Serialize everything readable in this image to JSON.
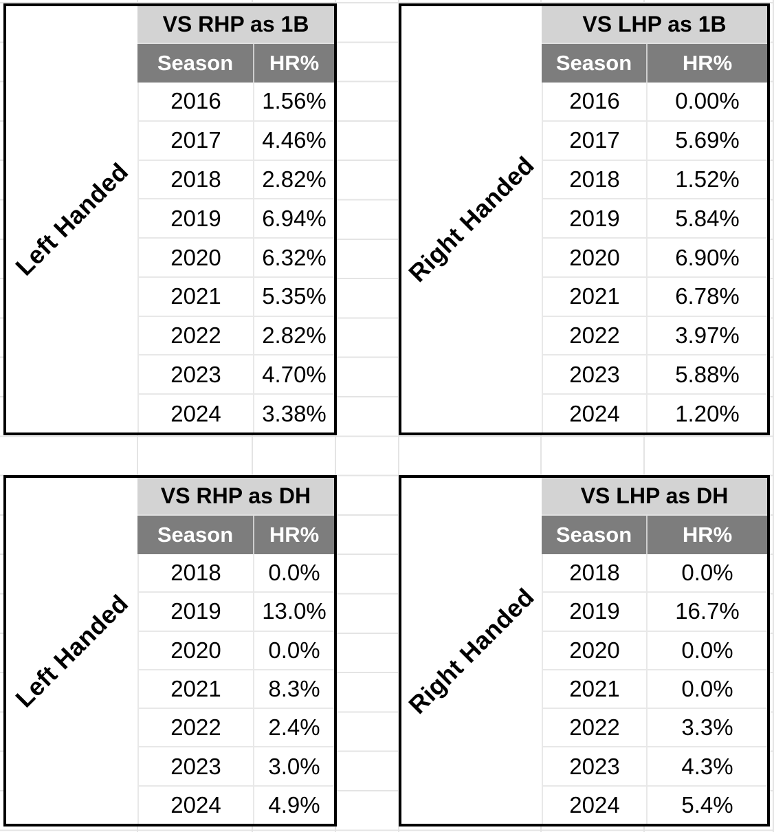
{
  "colors": {
    "title_bg": "#d3d3d3",
    "header_bg": "#7d7d7d",
    "header_text": "#ffffff",
    "page_gridline": "#e4e4e4",
    "table_gridline": "#e8e8e8",
    "header_divider": "#cfcfcf",
    "box_border": "#000000",
    "text_color": "#000000"
  },
  "tables": [
    {
      "id": "vs-rhp-as-1b",
      "side_label": "Left Handed",
      "title": "VS RHP as 1B",
      "columns": [
        "Season",
        "HR%"
      ],
      "rows": [
        [
          "2016",
          "1.56%"
        ],
        [
          "2017",
          "4.46%"
        ],
        [
          "2018",
          "2.82%"
        ],
        [
          "2019",
          "6.94%"
        ],
        [
          "2020",
          "6.32%"
        ],
        [
          "2021",
          "5.35%"
        ],
        [
          "2022",
          "2.82%"
        ],
        [
          "2023",
          "4.70%"
        ],
        [
          "2024",
          "3.38%"
        ]
      ]
    },
    {
      "id": "vs-lhp-as-1b",
      "side_label": "Right Handed",
      "title": "VS LHP as 1B",
      "columns": [
        "Season",
        "HR%"
      ],
      "rows": [
        [
          "2016",
          "0.00%"
        ],
        [
          "2017",
          "5.69%"
        ],
        [
          "2018",
          "1.52%"
        ],
        [
          "2019",
          "5.84%"
        ],
        [
          "2020",
          "6.90%"
        ],
        [
          "2021",
          "6.78%"
        ],
        [
          "2022",
          "3.97%"
        ],
        [
          "2023",
          "5.88%"
        ],
        [
          "2024",
          "1.20%"
        ]
      ]
    },
    {
      "id": "vs-rhp-as-dh",
      "side_label": "Left Handed",
      "title": "VS RHP as DH",
      "columns": [
        "Season",
        "HR%"
      ],
      "rows": [
        [
          "2018",
          "0.0%"
        ],
        [
          "2019",
          "13.0%"
        ],
        [
          "2020",
          "0.0%"
        ],
        [
          "2021",
          "8.3%"
        ],
        [
          "2022",
          "2.4%"
        ],
        [
          "2023",
          "3.0%"
        ],
        [
          "2024",
          "4.9%"
        ]
      ]
    },
    {
      "id": "vs-lhp-as-dh",
      "side_label": "Right Handed",
      "title": "VS LHP as DH",
      "columns": [
        "Season",
        "HR%"
      ],
      "rows": [
        [
          "2018",
          "0.0%"
        ],
        [
          "2019",
          "16.7%"
        ],
        [
          "2020",
          "0.0%"
        ],
        [
          "2021",
          "0.0%"
        ],
        [
          "2022",
          "3.3%"
        ],
        [
          "2023",
          "4.3%"
        ],
        [
          "2024",
          "5.4%"
        ]
      ]
    }
  ]
}
